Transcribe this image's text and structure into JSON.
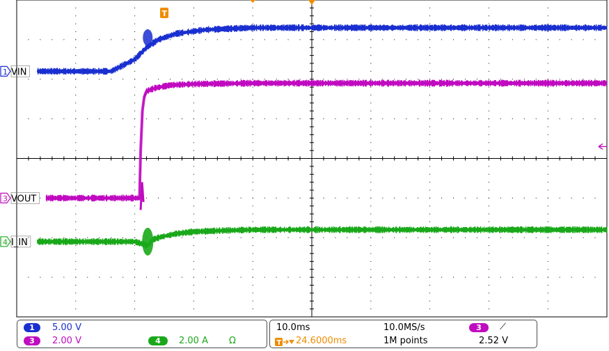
{
  "chart_data": {
    "type": "line",
    "title": "",
    "xlabel": "",
    "ylabel": "",
    "grid": true,
    "divisions": {
      "x": 10,
      "y": 8
    },
    "x_unit": "div",
    "xlim": [
      0,
      10
    ],
    "ylim": [
      -4,
      4
    ],
    "trigger_marker": "T",
    "series": [
      {
        "name": "VIN",
        "channel": "1",
        "color": "#1a2fd0",
        "marker_level": 2.2,
        "x": [
          0.35,
          1.6,
          2.0,
          2.2,
          2.4,
          2.7,
          3.2,
          4.0,
          5.0,
          6.0,
          10.0
        ],
        "y": [
          2.2,
          2.2,
          2.5,
          2.8,
          3.0,
          3.15,
          3.25,
          3.3,
          3.3,
          3.3,
          3.3
        ]
      },
      {
        "name": "VOUT",
        "channel": "3",
        "color": "#c00bc0",
        "marker_level": -1.0,
        "x": [
          0.5,
          2.08,
          2.1,
          2.13,
          2.16,
          2.2,
          2.35,
          2.6,
          3.0,
          4.0,
          10.0
        ],
        "y": [
          -1.0,
          -1.0,
          0.2,
          1.2,
          1.55,
          1.7,
          1.78,
          1.85,
          1.88,
          1.9,
          1.9
        ]
      },
      {
        "name": "I_IN",
        "channel": "4",
        "color": "#1aa81a",
        "marker_level": -2.1,
        "x": [
          0.35,
          2.0,
          2.22,
          2.3,
          2.45,
          2.7,
          3.0,
          3.5,
          4.0,
          5.0,
          10.0
        ],
        "y": [
          -2.1,
          -2.1,
          -2.2,
          -2.05,
          -1.98,
          -1.9,
          -1.85,
          -1.82,
          -1.8,
          -1.8,
          -1.8
        ]
      }
    ]
  },
  "status": {
    "ch1": {
      "num": "1",
      "scale": "5.00 V",
      "color": "#1a2fd0"
    },
    "ch3": {
      "num": "3",
      "scale": "2.00 V",
      "color": "#c00bc0"
    },
    "ch4": {
      "num": "4",
      "scale": "2.00 A",
      "unit_symbol": "Ω",
      "color": "#1aa81a"
    },
    "timebase": "10.0ms",
    "sample_rate": "10.0MS/s",
    "trigger_delay": "24.6000ms",
    "record_length": "1M points",
    "trigger": {
      "source": "3",
      "slope_symbol": "⟋",
      "level": "2.52 V",
      "color": "#c00bc0"
    },
    "trigger_color": "#f08c00"
  }
}
